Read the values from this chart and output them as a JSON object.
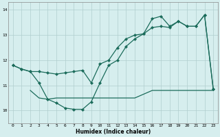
{
  "title": "",
  "xlabel": "Humidex (Indice chaleur)",
  "bg_color": "#d6eeee",
  "line_color": "#1a6b5a",
  "xlim": [
    -0.5,
    23.5
  ],
  "ylim": [
    9.5,
    14.3
  ],
  "yticks": [
    10,
    11,
    12,
    13,
    14
  ],
  "xticks": [
    0,
    1,
    2,
    3,
    4,
    5,
    6,
    7,
    8,
    9,
    10,
    11,
    12,
    13,
    14,
    15,
    16,
    17,
    18,
    19,
    20,
    21,
    22,
    23
  ],
  "series1_x": [
    0,
    1,
    2,
    3,
    4,
    5,
    6,
    7,
    8,
    9,
    10,
    11,
    12,
    13,
    14,
    15,
    16,
    17,
    18,
    19,
    20,
    21,
    22,
    23
  ],
  "series1_y": [
    11.8,
    11.65,
    11.55,
    11.55,
    11.5,
    11.45,
    11.5,
    11.55,
    11.6,
    11.1,
    11.85,
    12.0,
    12.5,
    12.85,
    13.0,
    13.05,
    13.3,
    13.35,
    13.3,
    13.55,
    13.35,
    13.35,
    13.8,
    10.85
  ],
  "series2_x": [
    0,
    1,
    2,
    3,
    4,
    5,
    6,
    7,
    8,
    9,
    10,
    11,
    12,
    13,
    14,
    15,
    16,
    17,
    18,
    19,
    20,
    21,
    22,
    23
  ],
  "series2_y": [
    11.8,
    11.65,
    11.55,
    11.1,
    10.45,
    10.3,
    10.1,
    10.05,
    10.05,
    10.35,
    11.1,
    11.8,
    12.0,
    12.55,
    12.85,
    13.05,
    13.65,
    13.75,
    13.35,
    13.55,
    13.35,
    13.35,
    13.8,
    10.85
  ],
  "series3_x": [
    2,
    3,
    4,
    5,
    6,
    7,
    8,
    9,
    10,
    11,
    12,
    13,
    14,
    15,
    16,
    17,
    18,
    19,
    20,
    21,
    22,
    23
  ],
  "series3_y": [
    10.8,
    10.5,
    10.45,
    10.5,
    10.5,
    10.5,
    10.5,
    10.5,
    10.5,
    10.5,
    10.5,
    10.5,
    10.5,
    10.65,
    10.8,
    10.8,
    10.8,
    10.8,
    10.8,
    10.8,
    10.8,
    10.8
  ],
  "grid_color": "#b0cece",
  "markersize": 2.2,
  "linewidth": 0.9
}
